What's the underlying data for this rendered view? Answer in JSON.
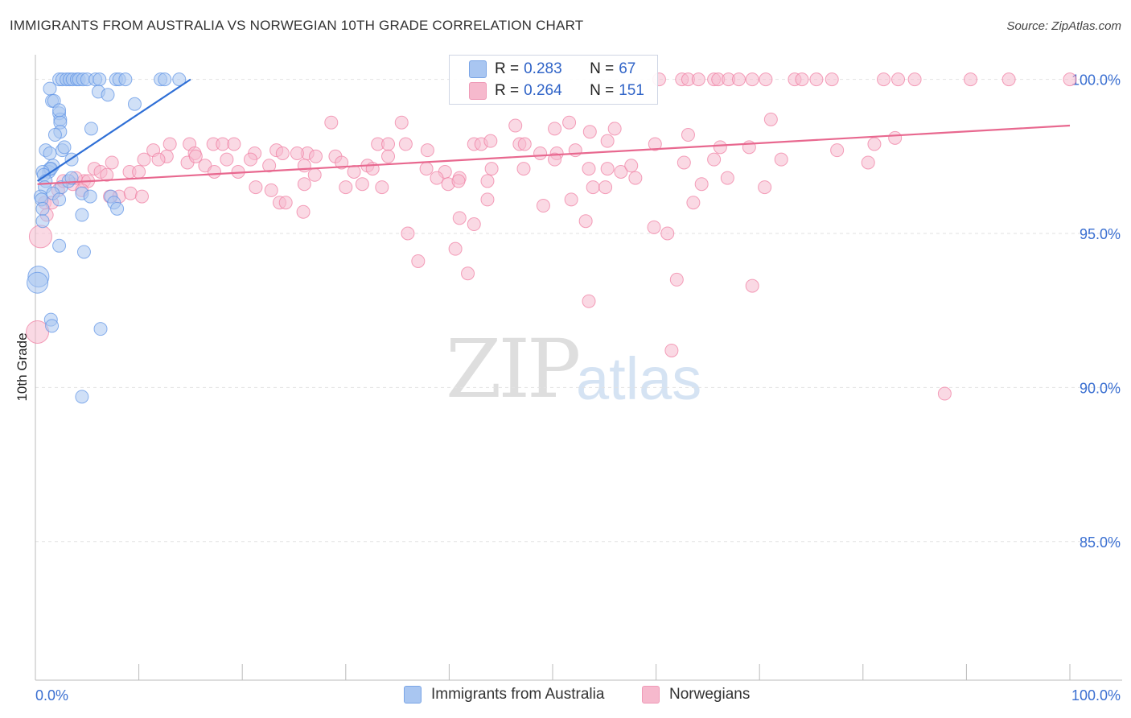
{
  "title": "IMMIGRANTS FROM AUSTRALIA VS NORWEGIAN 10TH GRADE CORRELATION CHART",
  "source": "Source: ZipAtlas.com",
  "watermark": {
    "zip": "ZIP",
    "atlas": "atlas"
  },
  "legend": {
    "rows": [
      {
        "r_label": "R =",
        "r_value": "0.283",
        "n_label": "N =",
        "n_value": "67",
        "color": "#a9c6f1"
      },
      {
        "r_label": "R =",
        "r_value": "0.264",
        "n_label": "N =",
        "n_value": "151",
        "color": "#f6b9cd"
      }
    ]
  },
  "bottom_legend": [
    {
      "label": "Immigrants from Australia",
      "color": "#a9c6f1"
    },
    {
      "label": "Norwegians",
      "color": "#f6b9cd"
    }
  ],
  "chart_data": {
    "type": "scatter",
    "title": "IMMIGRANTS FROM AUSTRALIA VS NORWEGIAN 10TH GRADE CORRELATION CHART",
    "xlabel": "",
    "ylabel": "10th Grade",
    "xlim": [
      0,
      100
    ],
    "ylim": [
      80.5,
      100.8
    ],
    "x_tick_labels": [
      "0.0%",
      "100.0%"
    ],
    "y_ticks": [
      85.0,
      90.0,
      95.0,
      100.0
    ],
    "y_tick_labels": [
      "85.0%",
      "90.0%",
      "95.0%",
      "100.0%"
    ],
    "grid": true,
    "colors": {
      "blue": "#5b92e5",
      "blue_fill": "#a9c6f1",
      "pink": "#ef7aa0",
      "pink_fill": "#f6b9cd",
      "tick_text": "#3a6fd1"
    },
    "series": [
      {
        "name": "Immigrants from Australia",
        "trend": {
          "x": [
            0.2,
            15.0
          ],
          "y": [
            96.7,
            100.0
          ]
        },
        "points": [
          [
            2.3,
            100
          ],
          [
            2.6,
            100
          ],
          [
            3.0,
            100
          ],
          [
            3.3,
            100
          ],
          [
            3.6,
            100
          ],
          [
            4.0,
            100
          ],
          [
            4.2,
            100
          ],
          [
            4.6,
            100
          ],
          [
            5.0,
            100
          ],
          [
            5.8,
            100
          ],
          [
            6.2,
            100
          ],
          [
            7.8,
            100
          ],
          [
            8.1,
            100
          ],
          [
            8.7,
            100
          ],
          [
            12.1,
            100
          ],
          [
            12.5,
            100
          ],
          [
            13.9,
            100
          ],
          [
            1.4,
            99.7
          ],
          [
            1.6,
            99.3
          ],
          [
            2.3,
            98.9
          ],
          [
            2.4,
            98.7
          ],
          [
            2.4,
            98.6
          ],
          [
            2.4,
            98.3
          ],
          [
            1.9,
            98.2
          ],
          [
            1.8,
            99.3
          ],
          [
            2.3,
            99.0
          ],
          [
            5.4,
            98.4
          ],
          [
            6.1,
            99.6
          ],
          [
            7.0,
            99.5
          ],
          [
            9.6,
            99.2
          ],
          [
            1.0,
            97.7
          ],
          [
            1.4,
            97.6
          ],
          [
            2.6,
            97.7
          ],
          [
            2.8,
            97.8
          ],
          [
            3.5,
            97.4
          ],
          [
            1.7,
            97.2
          ],
          [
            1.3,
            97.0
          ],
          [
            1.4,
            97.1
          ],
          [
            1.5,
            97.1
          ],
          [
            0.7,
            97.0
          ],
          [
            0.8,
            96.9
          ],
          [
            1.0,
            96.7
          ],
          [
            0.9,
            96.5
          ],
          [
            2.5,
            96.5
          ],
          [
            1.7,
            96.3
          ],
          [
            3.2,
            96.7
          ],
          [
            3.5,
            96.8
          ],
          [
            0.5,
            96.2
          ],
          [
            0.6,
            96.1
          ],
          [
            4.5,
            96.3
          ],
          [
            2.3,
            96.1
          ],
          [
            7.3,
            96.2
          ],
          [
            5.3,
            96.2
          ],
          [
            0.7,
            95.8
          ],
          [
            7.6,
            96.0
          ],
          [
            7.9,
            95.8
          ],
          [
            0.7,
            95.4
          ],
          [
            4.5,
            95.6
          ],
          [
            2.3,
            94.6
          ],
          [
            4.7,
            94.4
          ],
          [
            0.3,
            93.6
          ],
          [
            0.2,
            93.4
          ],
          [
            1.5,
            92.2
          ],
          [
            1.6,
            92.0
          ],
          [
            6.3,
            91.9
          ],
          [
            4.5,
            89.7
          ]
        ],
        "radii": [
          [
            0,
            0,
            8
          ],
          [
            58,
            0,
            11
          ],
          [
            59,
            0,
            11
          ]
        ]
      },
      {
        "name": "Norwegians",
        "trend": {
          "x": [
            0.2,
            100.0
          ],
          "y": [
            96.6,
            98.5
          ]
        },
        "points": [
          [
            60.3,
            100
          ],
          [
            62.5,
            100
          ],
          [
            63.1,
            100
          ],
          [
            64.1,
            100
          ],
          [
            65.6,
            100
          ],
          [
            66.0,
            100
          ],
          [
            67.0,
            100
          ],
          [
            68.0,
            100
          ],
          [
            69.3,
            100
          ],
          [
            70.6,
            100
          ],
          [
            73.4,
            100
          ],
          [
            74.1,
            100
          ],
          [
            75.5,
            100
          ],
          [
            77.0,
            100
          ],
          [
            82.0,
            100
          ],
          [
            83.4,
            100
          ],
          [
            85.0,
            100
          ],
          [
            90.4,
            100
          ],
          [
            94.1,
            100
          ],
          [
            100.0,
            100
          ],
          [
            28.6,
            98.6
          ],
          [
            35.4,
            98.6
          ],
          [
            46.4,
            98.5
          ],
          [
            50.2,
            98.4
          ],
          [
            51.6,
            98.6
          ],
          [
            53.6,
            98.3
          ],
          [
            56.0,
            98.4
          ],
          [
            63.1,
            98.2
          ],
          [
            71.1,
            98.7
          ],
          [
            81.1,
            97.9
          ],
          [
            83.1,
            98.1
          ],
          [
            11.4,
            97.7
          ],
          [
            12.7,
            97.5
          ],
          [
            13.0,
            97.9
          ],
          [
            14.9,
            97.9
          ],
          [
            15.4,
            97.6
          ],
          [
            17.2,
            97.9
          ],
          [
            18.1,
            97.9
          ],
          [
            19.2,
            97.9
          ],
          [
            21.2,
            97.6
          ],
          [
            23.3,
            97.7
          ],
          [
            26.3,
            97.6
          ],
          [
            27.1,
            97.5
          ],
          [
            29.0,
            97.5
          ],
          [
            33.1,
            97.9
          ],
          [
            34.1,
            97.9
          ],
          [
            35.8,
            97.9
          ],
          [
            37.9,
            97.7
          ],
          [
            42.4,
            97.9
          ],
          [
            43.1,
            97.9
          ],
          [
            44.0,
            98.0
          ],
          [
            46.8,
            97.9
          ],
          [
            47.3,
            97.9
          ],
          [
            48.8,
            97.6
          ],
          [
            50.4,
            97.6
          ],
          [
            52.2,
            97.7
          ],
          [
            55.3,
            98.0
          ],
          [
            59.9,
            97.9
          ],
          [
            66.2,
            97.8
          ],
          [
            69.0,
            97.8
          ],
          [
            7.4,
            97.3
          ],
          [
            9.1,
            97.0
          ],
          [
            10.0,
            97.0
          ],
          [
            10.5,
            97.4
          ],
          [
            11.9,
            97.4
          ],
          [
            14.7,
            97.3
          ],
          [
            15.5,
            97.5
          ],
          [
            16.4,
            97.2
          ],
          [
            17.3,
            97.0
          ],
          [
            18.5,
            97.4
          ],
          [
            19.6,
            97.0
          ],
          [
            20.8,
            97.4
          ],
          [
            22.6,
            97.2
          ],
          [
            23.9,
            97.6
          ],
          [
            25.3,
            97.6
          ],
          [
            26.0,
            97.2
          ],
          [
            27.0,
            96.9
          ],
          [
            29.6,
            97.3
          ],
          [
            30.8,
            97.0
          ],
          [
            32.1,
            97.2
          ],
          [
            32.6,
            97.1
          ],
          [
            34.1,
            97.5
          ],
          [
            37.8,
            97.1
          ],
          [
            39.6,
            97.0
          ],
          [
            41.0,
            96.8
          ],
          [
            44.1,
            97.1
          ],
          [
            47.2,
            97.1
          ],
          [
            50.2,
            97.4
          ],
          [
            53.5,
            97.1
          ],
          [
            55.3,
            97.1
          ],
          [
            56.6,
            97.0
          ],
          [
            57.6,
            97.2
          ],
          [
            58.0,
            96.8
          ],
          [
            62.7,
            97.3
          ],
          [
            65.6,
            97.4
          ],
          [
            72.1,
            97.4
          ],
          [
            77.5,
            97.7
          ],
          [
            80.5,
            97.3
          ],
          [
            3.6,
            96.6
          ],
          [
            4.7,
            96.7
          ],
          [
            5.1,
            96.7
          ],
          [
            5.7,
            97.1
          ],
          [
            6.3,
            97.0
          ],
          [
            4.5,
            96.4
          ],
          [
            7.2,
            96.2
          ],
          [
            8.1,
            96.2
          ],
          [
            9.2,
            96.3
          ],
          [
            10.3,
            96.2
          ],
          [
            21.3,
            96.5
          ],
          [
            22.8,
            96.4
          ],
          [
            26.0,
            96.6
          ],
          [
            30.0,
            96.5
          ],
          [
            31.6,
            96.6
          ],
          [
            33.5,
            96.5
          ],
          [
            38.8,
            96.8
          ],
          [
            39.9,
            96.6
          ],
          [
            40.9,
            96.7
          ],
          [
            43.7,
            96.7
          ],
          [
            51.8,
            96.1
          ],
          [
            53.9,
            96.5
          ],
          [
            55.1,
            96.5
          ],
          [
            64.4,
            96.6
          ],
          [
            66.9,
            96.8
          ],
          [
            70.5,
            96.5
          ],
          [
            1.1,
            95.6
          ],
          [
            2.2,
            96.4
          ],
          [
            23.6,
            96.0
          ],
          [
            24.2,
            96.0
          ],
          [
            25.9,
            95.7
          ],
          [
            36.0,
            95.0
          ],
          [
            41.0,
            95.5
          ],
          [
            42.4,
            95.3
          ],
          [
            43.7,
            96.1
          ],
          [
            49.1,
            95.9
          ],
          [
            53.2,
            95.4
          ],
          [
            59.8,
            95.2
          ],
          [
            61.1,
            95.0
          ],
          [
            63.6,
            96.0
          ],
          [
            0.5,
            94.9
          ],
          [
            37.0,
            94.1
          ],
          [
            40.6,
            94.5
          ],
          [
            41.8,
            93.7
          ],
          [
            53.5,
            92.8
          ],
          [
            62.0,
            93.5
          ],
          [
            69.3,
            93.3
          ],
          [
            0.2,
            91.8
          ],
          [
            61.5,
            91.2
          ],
          [
            87.9,
            89.8
          ],
          [
            0.9,
            96.0
          ],
          [
            1.6,
            96.0
          ],
          [
            2.7,
            96.7
          ],
          [
            3.9,
            96.8
          ],
          [
            6.9,
            96.9
          ]
        ]
      }
    ]
  }
}
